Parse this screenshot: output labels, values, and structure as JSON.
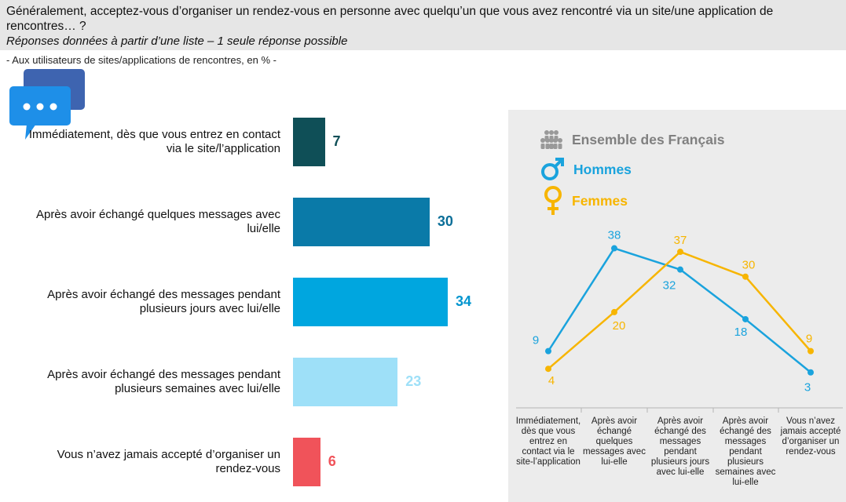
{
  "question": "Généralement, acceptez-vous d’organiser un rendez-vous en personne avec quelqu’un que vous avez rencontré via un site/une application de rencontres… ?",
  "instruction": "Réponses données à partir d’une liste – 1 seule réponse possible",
  "base": "- Aux utilisateurs de sites/applications de rencontres, en % -",
  "icon": "chat-bubbles-icon",
  "chart_data": [
    {
      "type": "bar",
      "categories": [
        "Immédiatement, dès que vous entrez en contact via le site/l’application",
        "Après avoir échangé quelques messages avec lui/elle",
        "Après avoir échangé des messages pendant plusieurs jours avec lui/elle",
        "Après avoir échangé des messages pendant plusieurs semaines avec lui/elle",
        "Vous n’avez jamais accepté d’organiser un rendez-vous"
      ],
      "values": [
        7,
        30,
        34,
        23,
        6
      ],
      "colors": [
        "#0f4f57",
        "#0a7aa8",
        "#00a6df",
        "#9ee0f8",
        "#f0535a"
      ],
      "label_colors": [
        "#0f4f57",
        "#0a6e98",
        "#0095cf",
        "#9ee0f8",
        "#f0535a"
      ],
      "xlim": [
        0,
        34
      ]
    },
    {
      "type": "line",
      "legend": [
        "Ensemble des Français",
        "Hommes",
        "Femmes"
      ],
      "categories": [
        "Immédiatement, dès que vous entrez en contact via le site-l’application",
        "Après avoir échangé quelques messages avec lui-elle",
        "Après avoir échangé des messages pendant plusieurs jours avec lui-elle",
        "Après avoir échangé des messages pendant plusieurs semaines avec lui-elle",
        "Vous n’avez jamais accepté d’organiser un rendez-vous"
      ],
      "series": [
        {
          "name": "Hommes",
          "values": [
            9,
            38,
            32,
            18,
            3
          ],
          "color": "#1aa3dd"
        },
        {
          "name": "Femmes",
          "values": [
            4,
            20,
            37,
            30,
            9
          ],
          "color": "#f7b500"
        }
      ],
      "legend_colors": {
        "ensemble": "#808080",
        "hommes": "#1aa3dd",
        "femmes": "#f7b500"
      },
      "panel_color": "#ececec"
    }
  ]
}
